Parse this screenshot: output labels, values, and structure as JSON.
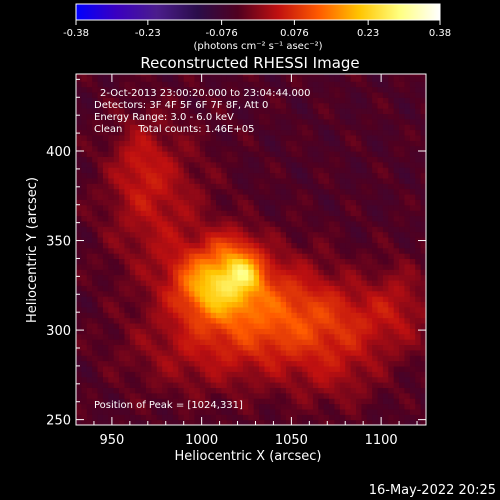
{
  "chart_data": {
    "type": "heatmap",
    "title": "Reconstructed RHESSI Image",
    "xlabel": "Heliocentric X (arcsec)",
    "ylabel": "Heliocentric Y (arcsec)",
    "xlim": [
      930,
      1125
    ],
    "ylim": [
      247,
      443
    ],
    "x_ticks": [
      950,
      1000,
      1050,
      1100
    ],
    "x_tick_labels": [
      "950",
      "1000",
      "1050",
      "1100"
    ],
    "y_ticks": [
      250,
      300,
      350,
      400
    ],
    "y_tick_labels": [
      "250",
      "300",
      "350",
      "400"
    ],
    "colorbar": {
      "min": -0.38,
      "max": 0.38,
      "ticks": [
        -0.38,
        -0.23,
        -0.076,
        0.076,
        0.23,
        0.38
      ],
      "tick_labels": [
        "-0.38",
        "-0.23",
        "-0.076",
        "0.076",
        "0.23",
        "0.38"
      ],
      "unit_label": "(photons cm⁻² s⁻¹ asec⁻²)",
      "colors": [
        "#0000ff",
        "#3a00c0",
        "#4b1d8c",
        "#2a0d4a",
        "#500020",
        "#c01010",
        "#ff5a00",
        "#ffc400",
        "#ffff80",
        "#ffffff"
      ]
    },
    "annotations": [
      "2-Oct-2013 23:00:20.000 to 23:04:44.000",
      "Detectors: 3F 4F 5F 6F 7F 8F, Att 0",
      "Energy Range: 3.0 - 6.0 keV",
      "Clean     Total counts: 1.46E+05"
    ],
    "peak_label": "Position of Peak = [1024,331]",
    "peak": [
      1024,
      331
    ],
    "grid": false,
    "sources": [
      {
        "x": 1008,
        "y": 326,
        "sx": 16,
        "sy": 14,
        "amp": 0.24
      },
      {
        "x": 1024,
        "y": 333,
        "sx": 7,
        "sy": 7,
        "amp": 0.12
      },
      {
        "x": 1018,
        "y": 348,
        "sx": 9,
        "sy": 8,
        "amp": 0.06
      },
      {
        "x": 1040,
        "y": 312,
        "sx": 24,
        "sy": 22,
        "amp": 0.11
      },
      {
        "x": 1080,
        "y": 305,
        "sx": 30,
        "sy": 16,
        "amp": 0.09
      },
      {
        "x": 975,
        "y": 370,
        "sx": 20,
        "sy": 30,
        "amp": 0.08
      },
      {
        "x": 965,
        "y": 395,
        "sx": 10,
        "sy": 15,
        "amp": 0.05
      },
      {
        "x": 1000,
        "y": 290,
        "sx": 30,
        "sy": 18,
        "amp": 0.07
      },
      {
        "x": 1075,
        "y": 275,
        "sx": 18,
        "sy": 14,
        "amp": 0.05
      },
      {
        "x": 1110,
        "y": 320,
        "sx": 10,
        "sy": 16,
        "amp": 0.04
      }
    ],
    "background": -0.05
  },
  "footer": {
    "date": "16-May-2022 20:25"
  }
}
